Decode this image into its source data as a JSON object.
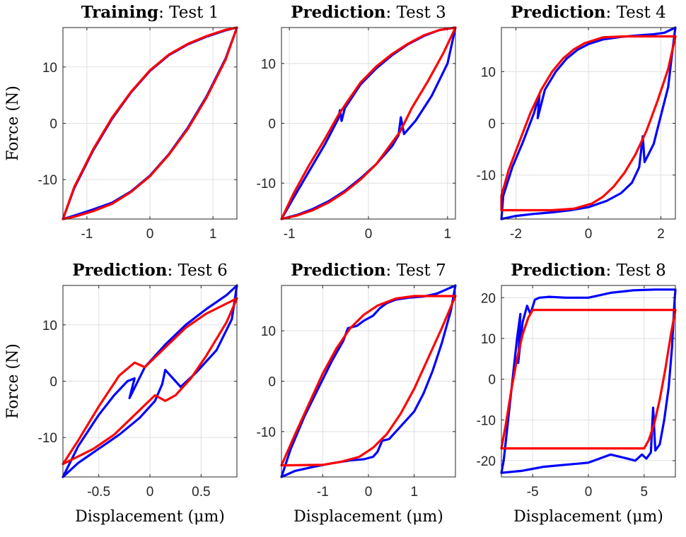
{
  "colors": {
    "measured": "#0000ff",
    "model": "#ff0000"
  },
  "chart_data": [
    {
      "type": "line",
      "title_bold": "Training",
      "title_rest": ": Test 1",
      "xlabel": "",
      "ylabel": "Force (N)",
      "xlim": [
        -1.38,
        1.38
      ],
      "ylim": [
        -17.0,
        17.0
      ],
      "xticks": [
        -1,
        0,
        1
      ],
      "xtick_labels": [
        "-1",
        "0",
        "1"
      ],
      "yticks": [
        -10,
        0,
        10
      ],
      "ytick_labels": [
        "-10",
        "0",
        "10"
      ],
      "grid": true,
      "series": [
        {
          "color": "measured",
          "x": [
            -1.38,
            -1.2,
            -0.9,
            -0.6,
            -0.3,
            0,
            0.3,
            0.6,
            0.9,
            1.2,
            1.38,
            1.2,
            0.9,
            0.6,
            0.3,
            0,
            -0.3,
            -0.6,
            -0.9,
            -1.2,
            -1.38
          ],
          "y": [
            -17,
            -11.5,
            -4.8,
            0.8,
            5.5,
            9.3,
            12.1,
            14.0,
            15.4,
            16.5,
            17,
            11.5,
            4.8,
            -0.8,
            -5.5,
            -9.3,
            -12.1,
            -14.1,
            -15.3,
            -16.4,
            -17
          ]
        },
        {
          "color": "model",
          "x": [
            -1.38,
            -1.2,
            -0.9,
            -0.6,
            -0.3,
            0,
            0.3,
            0.6,
            0.9,
            1.2,
            1.38,
            1.2,
            0.9,
            0.6,
            0.3,
            0,
            -0.3,
            -0.6,
            -0.9,
            -1.2,
            -1.38
          ],
          "y": [
            -17,
            -11.3,
            -4.6,
            1.0,
            5.6,
            9.4,
            12.2,
            14.1,
            15.5,
            16.6,
            17,
            11.3,
            4.6,
            -1.0,
            -5.6,
            -9.4,
            -12.2,
            -14.3,
            -15.6,
            -16.6,
            -17
          ]
        }
      ]
    },
    {
      "type": "line",
      "title_bold": "Prediction",
      "title_rest": ": Test 3",
      "xlabel": "",
      "ylabel": "",
      "xlim": [
        -1.1,
        1.1
      ],
      "ylim": [
        -16.0,
        16.0
      ],
      "xticks": [
        -1,
        0,
        1
      ],
      "xtick_labels": [
        "-1",
        "0",
        "1"
      ],
      "yticks": [
        -10,
        0,
        10
      ],
      "ytick_labels": [
        "-10",
        "0",
        "10"
      ],
      "grid": true,
      "series": [
        {
          "color": "measured",
          "x": [
            -1.1,
            -0.95,
            -0.75,
            -0.55,
            -0.38,
            -0.36,
            -0.34,
            -0.3,
            -0.1,
            0.1,
            0.3,
            0.5,
            0.7,
            0.9,
            1.05,
            1.1,
            1.0,
            0.8,
            0.6,
            0.45,
            0.41,
            0.38,
            0.3,
            0.1,
            -0.1,
            -0.3,
            -0.5,
            -0.7,
            -0.9,
            -1.1
          ],
          "y": [
            -16,
            -12.5,
            -8,
            -3.5,
            0.8,
            2.2,
            0.4,
            2.5,
            6.5,
            9.2,
            11.4,
            13.2,
            14.6,
            15.6,
            15.9,
            16,
            10,
            4.6,
            0.5,
            -1.8,
            1.0,
            -2.0,
            -3.8,
            -6.8,
            -9.2,
            -11.3,
            -13.0,
            -14.3,
            -15.3,
            -16
          ]
        },
        {
          "color": "model",
          "x": [
            -1.1,
            -0.95,
            -0.75,
            -0.55,
            -0.38,
            -0.3,
            -0.1,
            0.1,
            0.3,
            0.5,
            0.7,
            0.9,
            1.1,
            0.95,
            0.75,
            0.55,
            0.4,
            0.3,
            0.1,
            -0.1,
            -0.3,
            -0.5,
            -0.7,
            -0.9,
            -1.1
          ],
          "y": [
            -16,
            -11.8,
            -7.0,
            -2.6,
            1.4,
            3.0,
            6.8,
            9.5,
            11.6,
            13.3,
            14.7,
            15.6,
            16,
            11.8,
            7.0,
            2.6,
            -1.4,
            -3.2,
            -6.8,
            -9.4,
            -11.5,
            -13.2,
            -14.5,
            -15.4,
            -16
          ]
        }
      ]
    },
    {
      "type": "line",
      "title_bold": "Prediction",
      "title_rest": ": Test 4",
      "xlabel": "",
      "ylabel": "",
      "xlim": [
        -2.4,
        2.4
      ],
      "ylim": [
        -18.5,
        18.5
      ],
      "xticks": [
        -2,
        0,
        2
      ],
      "xtick_labels": [
        "-2",
        "0",
        "2"
      ],
      "yticks": [
        -10,
        0,
        10
      ],
      "ytick_labels": [
        "-10",
        "0",
        "10"
      ],
      "grid": true,
      "series": [
        {
          "color": "measured",
          "x": [
            -2.4,
            -2.35,
            -2.1,
            -1.8,
            -1.5,
            -1.35,
            -1.4,
            -1.2,
            -0.9,
            -0.6,
            -0.3,
            0,
            0.4,
            0.9,
            1.4,
            1.8,
            2.1,
            2.4,
            2.3,
            2.2,
            2.0,
            1.8,
            1.55,
            1.5,
            1.4,
            1.2,
            0.9,
            0.5,
            0,
            -0.5,
            -1.0,
            -1.5,
            -2.0,
            -2.4
          ],
          "y": [
            -18.5,
            -14,
            -8.5,
            -3.5,
            2.0,
            5.5,
            1.0,
            6.5,
            10.0,
            12.5,
            14.2,
            15.3,
            16.2,
            16.7,
            17.0,
            17.2,
            17.5,
            18.5,
            13.0,
            7.0,
            1.5,
            -4.0,
            -7.5,
            -2.5,
            -8.5,
            -11.5,
            -13.5,
            -15.0,
            -16.2,
            -16.8,
            -17.2,
            -17.5,
            -17.9,
            -18.5
          ]
        },
        {
          "color": "model",
          "x": [
            -2.4,
            -2.2,
            -1.9,
            -1.6,
            -1.3,
            -1.0,
            -0.7,
            -0.4,
            -0.1,
            0.4,
            1.0,
            2.4,
            2.4,
            2.2,
            1.9,
            1.6,
            1.3,
            1.0,
            0.7,
            0.4,
            0.1,
            -0.4,
            -1.0,
            -2.4,
            -2.4
          ],
          "y": [
            -14.0,
            -9.0,
            -3.5,
            2.0,
            6.5,
            10.0,
            12.5,
            14.3,
            15.5,
            16.6,
            16.8,
            16.8,
            16.8,
            10.5,
            4.2,
            -1.5,
            -6.0,
            -9.5,
            -12.2,
            -14.2,
            -15.5,
            -16.5,
            -16.8,
            -16.8,
            -14.0
          ]
        }
      ]
    },
    {
      "type": "line",
      "title_bold": "Prediction",
      "title_rest": ": Test 6",
      "xlabel": "Displacement (μm)",
      "ylabel": "Force (N)",
      "xlim": [
        -0.85,
        0.85
      ],
      "ylim": [
        -17.0,
        17.0
      ],
      "xticks": [
        -0.5,
        0,
        0.5
      ],
      "xtick_labels": [
        "-0.5",
        "0",
        "0.5"
      ],
      "yticks": [
        -10,
        0,
        10
      ],
      "ytick_labels": [
        "-10",
        "0",
        "10"
      ],
      "grid": true,
      "series": [
        {
          "color": "measured",
          "x": [
            -0.85,
            -0.7,
            -0.5,
            -0.35,
            -0.22,
            -0.15,
            -0.2,
            -0.05,
            0.15,
            0.35,
            0.55,
            0.75,
            0.85,
            0.8,
            0.65,
            0.45,
            0.3,
            0.15,
            0.12,
            0.05,
            -0.1,
            -0.3,
            -0.5,
            -0.7,
            -0.85
          ],
          "y": [
            -17,
            -11.5,
            -6.0,
            -2.5,
            0.0,
            0.5,
            -3.0,
            2.5,
            6.5,
            10.0,
            12.8,
            15.3,
            17,
            11.0,
            5.5,
            1.5,
            -1.0,
            2.0,
            -0.5,
            -3.5,
            -6.5,
            -9.5,
            -12.0,
            -14.5,
            -17
          ]
        },
        {
          "color": "model",
          "x": [
            -0.85,
            -0.7,
            -0.5,
            -0.3,
            -0.15,
            -0.05,
            0.15,
            0.35,
            0.55,
            0.75,
            0.85,
            0.75,
            0.55,
            0.4,
            0.25,
            0.15,
            0.05,
            -0.15,
            -0.35,
            -0.55,
            -0.75,
            -0.85
          ],
          "y": [
            -14.7,
            -10.5,
            -4.5,
            1.0,
            3.3,
            2.5,
            6.0,
            9.5,
            12.0,
            13.8,
            14.7,
            10.5,
            4.5,
            0.5,
            -2.5,
            -3.5,
            -2.5,
            -6.0,
            -9.5,
            -12.0,
            -13.8,
            -14.7
          ]
        }
      ]
    },
    {
      "type": "line",
      "title_bold": "Prediction",
      "title_rest": ": Test 7",
      "xlabel": "Displacement (μm)",
      "ylabel": "",
      "xlim": [
        -1.9,
        1.9
      ],
      "ylim": [
        -19.0,
        19.0
      ],
      "xticks": [
        -1,
        0,
        1
      ],
      "xtick_labels": [
        "-1",
        "0",
        "1"
      ],
      "yticks": [
        -10,
        0,
        10
      ],
      "ytick_labels": [
        "-10",
        "0",
        "10"
      ],
      "grid": true,
      "series": [
        {
          "color": "measured",
          "x": [
            -1.9,
            -1.7,
            -1.4,
            -1.1,
            -0.8,
            -0.55,
            -0.45,
            -0.25,
            -0.1,
            0.1,
            0.25,
            0.4,
            0.6,
            0.9,
            1.2,
            1.5,
            1.7,
            1.9,
            1.8,
            1.6,
            1.4,
            1.2,
            1.0,
            0.7,
            0.45,
            0.3,
            0.2,
            0.1,
            -0.1,
            -0.4,
            -0.8,
            -1.2,
            -1.6,
            -1.9
          ],
          "y": [
            -19,
            -13.5,
            -7.0,
            -1.5,
            4.0,
            8.0,
            10.5,
            11.0,
            12.0,
            13.0,
            14.5,
            15.5,
            16.2,
            16.6,
            16.8,
            17.4,
            18.2,
            19,
            14.0,
            7.5,
            2.0,
            -2.5,
            -6.0,
            -9.0,
            -11.5,
            -11.8,
            -14.0,
            -15.0,
            -15.5,
            -15.7,
            -16.3,
            -17.0,
            -17.8,
            -19
          ]
        },
        {
          "color": "model",
          "x": [
            -1.9,
            -1.6,
            -1.3,
            -1.0,
            -0.7,
            -0.4,
            -0.1,
            0.2,
            0.6,
            1.0,
            1.9,
            1.9,
            1.6,
            1.3,
            1.0,
            0.7,
            0.4,
            0.1,
            -0.2,
            -0.6,
            -1.0,
            -1.9,
            -1.9
          ],
          "y": [
            -16.7,
            -10.5,
            -4.5,
            1.5,
            6.5,
            10.5,
            13.2,
            15.0,
            16.4,
            16.9,
            16.9,
            16.9,
            10.5,
            4.5,
            -1.5,
            -6.5,
            -10.5,
            -13.2,
            -15.0,
            -16.0,
            -16.6,
            -16.7,
            -16.7
          ]
        }
      ]
    },
    {
      "type": "line",
      "title_bold": "Prediction",
      "title_rest": ": Test 8",
      "xlabel": "Displacement (μm)",
      "ylabel": "",
      "xlim": [
        -7.8,
        7.8
      ],
      "ylim": [
        -24.0,
        23.0
      ],
      "xticks": [
        -5,
        0,
        5
      ],
      "xtick_labels": [
        "-5",
        "0",
        "5"
      ],
      "yticks": [
        -20,
        -10,
        0,
        10,
        20
      ],
      "ytick_labels": [
        "-20",
        "-10",
        "0",
        "10",
        "20"
      ],
      "grid": true,
      "series": [
        {
          "color": "measured",
          "x": [
            -7.8,
            -7.6,
            -7.2,
            -6.8,
            -6.4,
            -6.1,
            -6.3,
            -5.9,
            -5.5,
            -5.2,
            -4.8,
            -4.4,
            -3.5,
            -2.0,
            0.0,
            2.0,
            4.0,
            6.0,
            7.8,
            7.7,
            7.5,
            7.2,
            6.8,
            6.4,
            6.0,
            5.8,
            5.6,
            5.2,
            4.8,
            4.2,
            3.5,
            2.0,
            0.0,
            -2.0,
            -4.0,
            -6.0,
            -7.8
          ],
          "y": [
            -23,
            -20,
            -10,
            0,
            10,
            16,
            4,
            14,
            18,
            16,
            19.5,
            20.0,
            20.2,
            20.0,
            20.0,
            21.2,
            21.8,
            22.0,
            22.0,
            18,
            8,
            -2,
            -10,
            -16,
            -17.5,
            -7,
            -18,
            -19.5,
            -18.5,
            -20,
            -19.5,
            -18.5,
            -20.5,
            -21.0,
            -21.5,
            -22.5,
            -23
          ]
        },
        {
          "color": "model",
          "x": [
            -7.8,
            -7.4,
            -6.9,
            -6.4,
            -5.9,
            -5.4,
            -5.0,
            -5.0,
            7.8,
            7.8,
            7.4,
            6.9,
            6.4,
            5.9,
            5.4,
            5.0,
            5.0,
            -7.8,
            -7.8
          ],
          "y": [
            -17.0,
            -11.0,
            -2.5,
            5.0,
            11.0,
            15.0,
            17.0,
            17.0,
            17.0,
            17.0,
            11.0,
            2.5,
            -5.0,
            -11.0,
            -15.0,
            -17.0,
            -17.0,
            -17.0,
            -17.0
          ]
        }
      ]
    }
  ]
}
